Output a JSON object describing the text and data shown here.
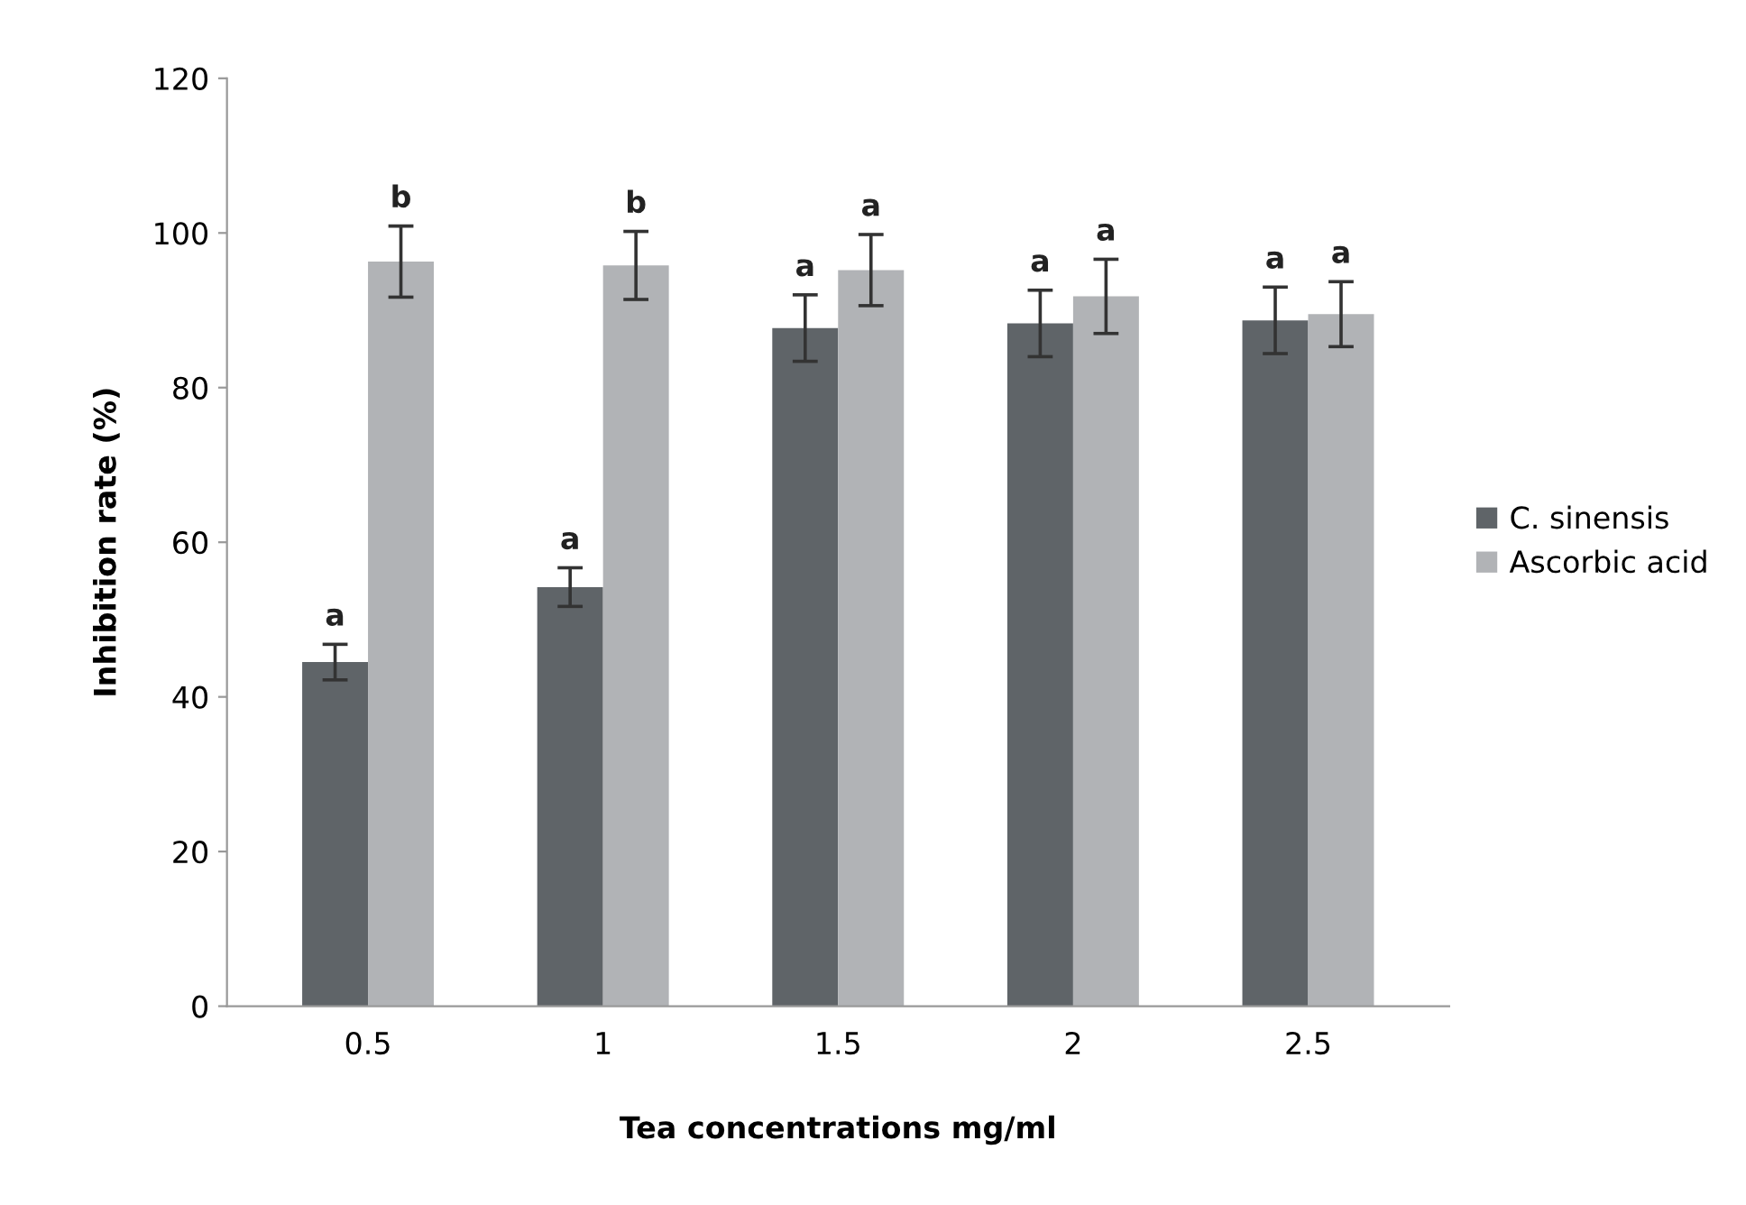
{
  "chart_data": {
    "type": "bar",
    "xlabel": "Tea concentrations mg/ml",
    "ylabel": "Inhibition rate (%)",
    "categories": [
      "0.5",
      "1",
      "1.5",
      "2",
      "2.5"
    ],
    "series": [
      {
        "name": "C. sinensis",
        "color": "#5f6468",
        "values": [
          44.5,
          54.2,
          87.7,
          88.3,
          88.7
        ],
        "errors": [
          2.3,
          2.5,
          4.3,
          4.3,
          4.3
        ],
        "value_labels": [
          "a",
          "a",
          "a",
          "a",
          "a"
        ]
      },
      {
        "name": "Ascorbic acid",
        "color": "#b1b3b6",
        "values": [
          96.3,
          95.8,
          95.2,
          91.8,
          89.5
        ],
        "errors": [
          4.6,
          4.4,
          4.6,
          4.8,
          4.2
        ],
        "value_labels": [
          "b",
          "b",
          "a",
          "a",
          "a"
        ]
      }
    ],
    "ylim": [
      0,
      120
    ],
    "yticks": [
      0,
      20,
      40,
      60,
      80,
      100,
      120
    ],
    "grid": false,
    "legend": "right"
  }
}
